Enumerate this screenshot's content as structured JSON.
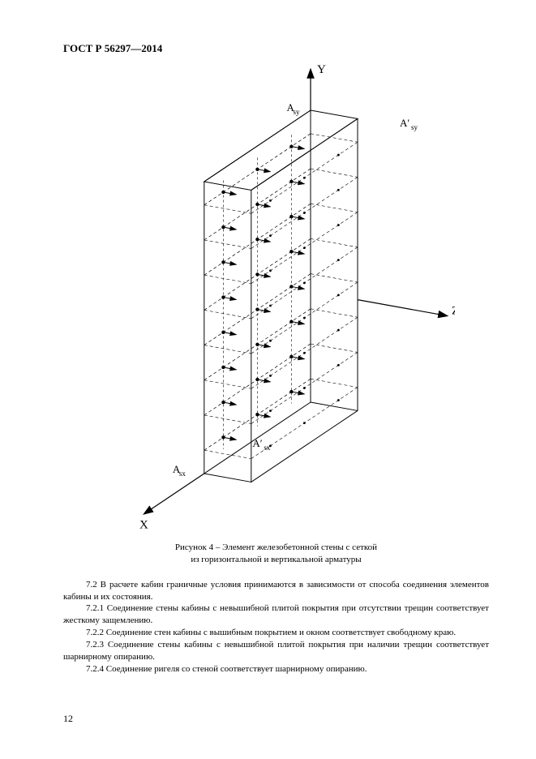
{
  "header": "ГОСТ Р 56297—2014",
  "diagram": {
    "axes": {
      "y": "Y",
      "z": "Z",
      "x": "X"
    },
    "labels": {
      "Asy": "Aₛᵧ",
      "Asy_prime": "A′ₛᵧ",
      "Asx": "Aₛₓ",
      "Asx_prime": "A′ₛₓ"
    },
    "stroke": "#000000",
    "bg": "#ffffff",
    "bar_rows": [
      0,
      1,
      2,
      3,
      4,
      5,
      6,
      7
    ],
    "bar_cols": [
      0,
      1,
      2
    ]
  },
  "caption": {
    "line1": "Рисунок 4 – Элемент железобетонной стены с сеткой",
    "line2": "из горизонтальной и вертикальной арматуры"
  },
  "paragraphs": [
    "7.2 В расчете кабин граничные условия принимаются в зависимости от способа соединения элементов кабины и их состояния.",
    "7.2.1 Соединение стены кабины с невышибной плитой покрытия при отсутствии трещин соответствует жесткому защемлению.",
    "7.2.2 Соединение стен кабины с вышибным покрытием и окном соответствует свободному краю.",
    "7.2.3 Соединение стены кабины с невышибной плитой покрытия при наличии трещин соответствует шарнирному опиранию.",
    "7.2.4 Соединение ригеля со стеной соответствует шарнирному опиранию."
  ],
  "pageNumber": "12"
}
